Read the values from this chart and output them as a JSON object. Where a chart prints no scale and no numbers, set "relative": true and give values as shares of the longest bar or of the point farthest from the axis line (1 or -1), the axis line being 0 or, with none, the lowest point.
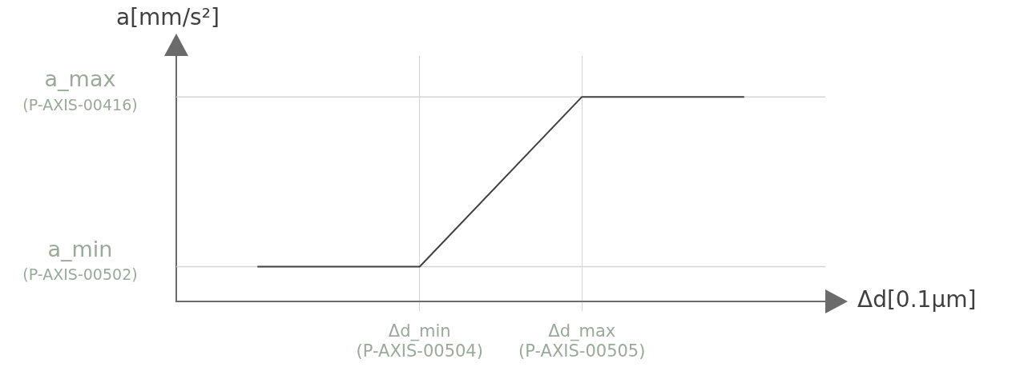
{
  "chart_data": {
    "type": "line",
    "xlabel": "Δd[0.1μm]",
    "ylabel": "a[mm/s²]",
    "relative": true,
    "categories": [
      null,
      "Δd_min (P-AXIS-00504)",
      "Δd_max (P-AXIS-00505)",
      null
    ],
    "series": [
      {
        "color": "#404040",
        "values": [
          0.17,
          0.17,
          1,
          1
        ]
      }
    ],
    "ref_lines": [
      {
        "axis": "y",
        "value": 1,
        "label": "a_max (P-AXIS-00416)",
        "color": "#d4d4d4"
      },
      {
        "axis": "y",
        "value": 0.17,
        "label": "a_min (P-AXIS-00502)",
        "color": "#d4d4d4"
      }
    ],
    "grid": "x",
    "legend": false,
    "marker": "none",
    "line_style": "solid"
  }
}
